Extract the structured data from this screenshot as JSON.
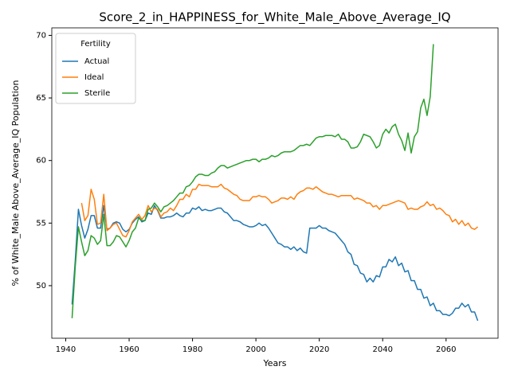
{
  "chart_data": {
    "type": "line",
    "title": "Score_2_in_HAPPINESS_for_White_Male_Above_Average_IQ",
    "x_label": "Years",
    "y_label": "% of White_Male Above_Average_IQ Population",
    "legend_title": "Fertility",
    "legend_position": "upper left",
    "x": [
      1942,
      1943,
      1944,
      1945,
      1946,
      1947,
      1948,
      1949,
      1950,
      1951,
      1952,
      1953,
      1954,
      1955,
      1956,
      1957,
      1958,
      1959,
      1960,
      1961,
      1962,
      1963,
      1964,
      1965,
      1966,
      1967,
      1968,
      1969,
      1970,
      1971,
      1972,
      1973,
      1974,
      1975,
      1976,
      1977,
      1978,
      1979,
      1980,
      1981,
      1982,
      1983,
      1984,
      1985,
      1986,
      1987,
      1988,
      1989,
      1990,
      1991,
      1992,
      1993,
      1994,
      1995,
      1996,
      1997,
      1998,
      1999,
      2000,
      2001,
      2002,
      2003,
      2004,
      2005,
      2006,
      2007,
      2008,
      2009,
      2010,
      2011,
      2012,
      2013,
      2014,
      2015,
      2016,
      2017,
      2018,
      2019,
      2020,
      2021,
      2022,
      2023,
      2024,
      2025,
      2026,
      2027,
      2028,
      2029,
      2030,
      2031,
      2032,
      2033,
      2034,
      2035,
      2036,
      2037,
      2038,
      2039,
      2040,
      2041,
      2042,
      2043,
      2044,
      2045,
      2046,
      2047,
      2048,
      2049,
      2050,
      2051,
      2052,
      2053,
      2054,
      2055,
      2056,
      2057,
      2058,
      2059,
      2060,
      2061,
      2062,
      2063,
      2064,
      2065,
      2066,
      2067,
      2068,
      2069,
      2070
    ],
    "series": [
      {
        "name": "Actual",
        "color": "#1f77b4",
        "values": [
          48.5,
          52,
          56.1,
          54.8,
          53.8,
          54.5,
          55.6,
          55.6,
          54.6,
          54.6,
          56.4,
          54.5,
          54.6,
          55.0,
          55.1,
          55.0,
          54.5,
          54.3,
          54.5,
          55.0,
          55.3,
          55.5,
          55.1,
          55.2,
          55.8,
          55.7,
          56.4,
          56.0,
          55.4,
          55.4,
          55.5,
          55.5,
          55.6,
          55.8,
          55.6,
          55.5,
          55.8,
          55.8,
          56.2,
          56.1,
          56.3,
          56.0,
          56.1,
          56.0,
          56.0,
          56.1,
          56.2,
          56.2,
          55.9,
          55.8,
          55.5,
          55.2,
          55.2,
          55.1,
          54.9,
          54.8,
          54.7,
          54.7,
          54.8,
          55.0,
          54.8,
          54.9,
          54.6,
          54.2,
          53.8,
          53.4,
          53.3,
          53.1,
          53.1,
          52.9,
          53.1,
          52.8,
          53.0,
          52.7,
          52.6,
          54.6,
          54.6,
          54.6,
          54.8,
          54.6,
          54.6,
          54.4,
          54.3,
          54.2,
          53.9,
          53.6,
          53.3,
          52.7,
          52.5,
          51.7,
          51.6,
          51.0,
          50.9,
          50.3,
          50.6,
          50.3,
          50.8,
          50.7,
          51.5,
          51.5,
          52.1,
          51.9,
          52.3,
          51.6,
          51.8,
          51.1,
          51.2,
          50.4,
          50.4,
          49.7,
          49.7,
          49.0,
          49.1,
          48.4,
          48.6,
          48.0,
          48.0,
          47.7,
          47.7,
          47.6,
          47.8,
          48.2,
          48.2,
          48.6,
          48.3,
          48.5,
          47.9,
          47.9,
          47.2
        ]
      },
      {
        "name": "Ideal",
        "color": "#ff7f0e",
        "values": [
          null,
          null,
          null,
          56.6,
          55.2,
          55.6,
          57.7,
          56.9,
          54.9,
          55.0,
          57.3,
          54.4,
          54.6,
          54.9,
          55.0,
          54.5,
          54.0,
          53.9,
          54.4,
          55.1,
          55.4,
          55.7,
          55.3,
          55.6,
          56.4,
          55.9,
          56.2,
          56.1,
          55.5,
          55.8,
          55.9,
          56.2,
          56.0,
          56.4,
          56.9,
          56.9,
          57.3,
          57.1,
          57.7,
          57.7,
          58.1,
          58.0,
          58.0,
          58.0,
          57.9,
          57.9,
          57.9,
          58.1,
          57.8,
          57.7,
          57.5,
          57.3,
          57.2,
          56.9,
          56.8,
          56.8,
          56.8,
          57.1,
          57.1,
          57.2,
          57.1,
          57.1,
          56.9,
          56.6,
          56.7,
          56.8,
          57.0,
          57.0,
          56.9,
          57.1,
          56.9,
          57.3,
          57.5,
          57.6,
          57.8,
          57.8,
          57.7,
          57.9,
          57.7,
          57.5,
          57.4,
          57.3,
          57.3,
          57.2,
          57.1,
          57.2,
          57.2,
          57.2,
          57.2,
          56.9,
          57.0,
          56.9,
          56.8,
          56.6,
          56.6,
          56.3,
          56.4,
          56.1,
          56.4,
          56.4,
          56.5,
          56.6,
          56.7,
          56.8,
          56.7,
          56.6,
          56.1,
          56.2,
          56.1,
          56.1,
          56.3,
          56.4,
          56.7,
          56.4,
          56.5,
          56.1,
          56.2,
          56.0,
          55.7,
          55.6,
          55.1,
          55.3,
          54.9,
          55.2,
          54.8,
          55.0,
          54.6,
          54.5,
          54.7
        ]
      },
      {
        "name": "Sterile",
        "color": "#2ca02c",
        "values": [
          47.4,
          51.5,
          54.7,
          53.5,
          52.4,
          52.8,
          54.0,
          53.8,
          53.3,
          53.6,
          55.7,
          53.2,
          53.2,
          53.5,
          54.0,
          53.9,
          53.5,
          53.1,
          53.6,
          54.3,
          54.6,
          55.4,
          55.2,
          55.2,
          56.1,
          56.2,
          56.6,
          56.3,
          55.9,
          56.3,
          56.4,
          56.6,
          56.8,
          57.1,
          57.4,
          57.4,
          57.9,
          58.0,
          58.3,
          58.7,
          58.9,
          58.9,
          58.8,
          58.8,
          59.0,
          59.1,
          59.4,
          59.6,
          59.6,
          59.4,
          59.5,
          59.6,
          59.7,
          59.8,
          59.9,
          60.0,
          60.0,
          60.1,
          60.1,
          59.9,
          60.1,
          60.1,
          60.2,
          60.4,
          60.3,
          60.4,
          60.6,
          60.7,
          60.7,
          60.7,
          60.8,
          61.0,
          61.2,
          61.2,
          61.3,
          61.2,
          61.5,
          61.8,
          61.9,
          61.9,
          62.0,
          62.0,
          62.0,
          61.9,
          62.1,
          61.7,
          61.7,
          61.5,
          61.0,
          61.0,
          61.1,
          61.5,
          62.1,
          62.0,
          61.9,
          61.5,
          61.0,
          61.2,
          62.1,
          62.5,
          62.2,
          62.7,
          62.9,
          62.1,
          61.6,
          60.8,
          62.2,
          60.6,
          61.9,
          62.3,
          64.2,
          64.9,
          63.6,
          65.1,
          69.3,
          null,
          null,
          null,
          null,
          null,
          null,
          null,
          null,
          null,
          null,
          null,
          null,
          null,
          null
        ]
      }
    ],
    "xlim": [
      1935.6,
      2076.4
    ],
    "ylim": [
      45.8,
      70.6
    ],
    "xticks": [
      1940,
      1960,
      1980,
      2000,
      2020,
      2040,
      2060
    ],
    "yticks": [
      50,
      55,
      60,
      65,
      70
    ],
    "grid": false
  }
}
